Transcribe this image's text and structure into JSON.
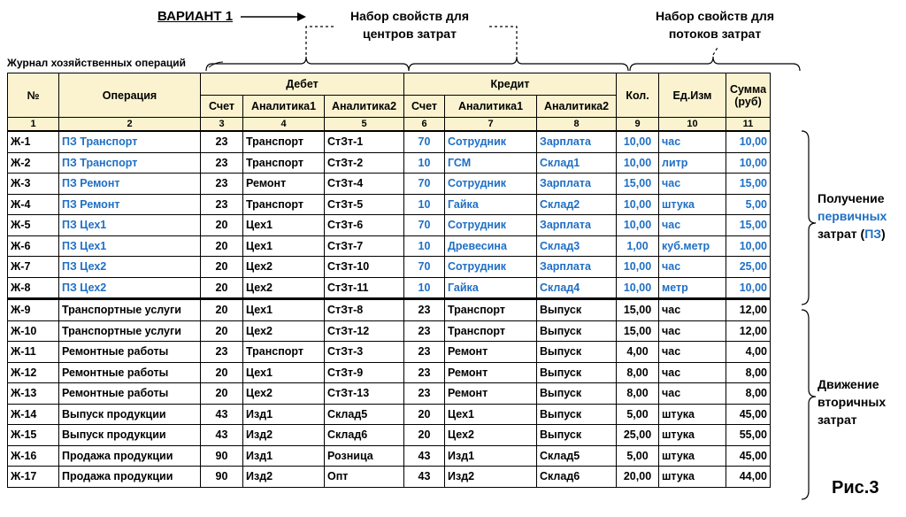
{
  "variant": "ВАРИАНТ 1",
  "caption_cost_centers": [
    "Набор свойств для",
    "центров затрат"
  ],
  "caption_cost_flows": [
    "Набор свойств для",
    "потоков затрат"
  ],
  "journal_title": "Журнал хозяйственных операций",
  "headers": {
    "num": "№",
    "operation": "Операция",
    "debit": "Дебет",
    "credit": "Кредит",
    "account": "Счет",
    "analytics1": "Аналитика1",
    "analytics2": "Аналитика2",
    "qty": "Кол.",
    "unit": "Ед.Изм",
    "sum_line1": "Сумма",
    "sum_line2": "(руб)"
  },
  "column_numbers": [
    "1",
    "2",
    "3",
    "4",
    "5",
    "6",
    "7",
    "8",
    "9",
    "10",
    "11"
  ],
  "rows": [
    [
      "Ж-1",
      "ПЗ Транспорт",
      "23",
      "Транспорт",
      "СтЗт-1",
      "70",
      "Сотрудник",
      "Зарплата",
      "10,00",
      "час",
      "10,00"
    ],
    [
      "Ж-2",
      "ПЗ Транспорт",
      "23",
      "Транспорт",
      "СтЗт-2",
      "10",
      "ГСМ",
      "Склад1",
      "10,00",
      "литр",
      "10,00"
    ],
    [
      "Ж-3",
      "ПЗ Ремонт",
      "23",
      "Ремонт",
      "СтЗт-4",
      "70",
      "Сотрудник",
      "Зарплата",
      "15,00",
      "час",
      "15,00"
    ],
    [
      "Ж-4",
      "ПЗ Ремонт",
      "23",
      "Транспорт",
      "СтЗт-5",
      "10",
      "Гайка",
      "Склад2",
      "10,00",
      "штука",
      "5,00"
    ],
    [
      "Ж-5",
      "ПЗ Цех1",
      "20",
      "Цех1",
      "СтЗт-6",
      "70",
      "Сотрудник",
      "Зарплата",
      "10,00",
      "час",
      "15,00"
    ],
    [
      "Ж-6",
      "ПЗ Цех1",
      "20",
      "Цех1",
      "СтЗт-7",
      "10",
      "Древесина",
      "Склад3",
      "1,00",
      "куб.метр",
      "10,00"
    ],
    [
      "Ж-7",
      "ПЗ Цех2",
      "20",
      "Цех2",
      "СтЗт-10",
      "70",
      "Сотрудник",
      "Зарплата",
      "10,00",
      "час",
      "25,00"
    ],
    [
      "Ж-8",
      "ПЗ Цех2",
      "20",
      "Цех2",
      "СтЗт-11",
      "10",
      "Гайка",
      "Склад4",
      "10,00",
      "метр",
      "10,00"
    ],
    [
      "Ж-9",
      "Транспортные услуги",
      "20",
      "Цех1",
      "СтЗт-8",
      "23",
      "Транспорт",
      "Выпуск",
      "15,00",
      "час",
      "12,00"
    ],
    [
      "Ж-10",
      "Транспортные услуги",
      "20",
      "Цех2",
      "СтЗт-12",
      "23",
      "Транспорт",
      "Выпуск",
      "15,00",
      "час",
      "12,00"
    ],
    [
      "Ж-11",
      "Ремонтные работы",
      "23",
      "Транспорт",
      "СтЗт-3",
      "23",
      "Ремонт",
      "Выпуск",
      "4,00",
      "час",
      "4,00"
    ],
    [
      "Ж-12",
      "Ремонтные работы",
      "20",
      "Цех1",
      "СтЗт-9",
      "23",
      "Ремонт",
      "Выпуск",
      "8,00",
      "час",
      "8,00"
    ],
    [
      "Ж-13",
      "Ремонтные работы",
      "20",
      "Цех2",
      "СтЗт-13",
      "23",
      "Ремонт",
      "Выпуск",
      "8,00",
      "час",
      "8,00"
    ],
    [
      "Ж-14",
      "Выпуск продукции",
      "43",
      "Изд1",
      "Склад5",
      "20",
      "Цех1",
      "Выпуск",
      "5,00",
      "штука",
      "45,00"
    ],
    [
      "Ж-15",
      "Выпуск продукции",
      "43",
      "Изд2",
      "Склад6",
      "20",
      "Цех2",
      "Выпуск",
      "25,00",
      "штука",
      "55,00"
    ],
    [
      "Ж-16",
      "Продажа продукции",
      "90",
      "Изд1",
      "Розница",
      "43",
      "Изд1",
      "Склад5",
      "5,00",
      "штука",
      "45,00"
    ],
    [
      "Ж-17",
      "Продажа продукции",
      "90",
      "Изд2",
      "Опт",
      "43",
      "Изд2",
      "Склад6",
      "20,00",
      "штука",
      "44,00"
    ]
  ],
  "primary_label": {
    "line1": "Получение",
    "line2": "первичных",
    "line3_a": "затрат",
    "line3_b": "(",
    "line3_c": "ПЗ",
    "line3_d": ")"
  },
  "secondary_label": [
    "Движение",
    "вторичных",
    "затрат"
  ],
  "figure_label": "Рис.3",
  "colors": {
    "accent_blue": "#1f6fc5",
    "header_bg": "#fbf3cf"
  }
}
